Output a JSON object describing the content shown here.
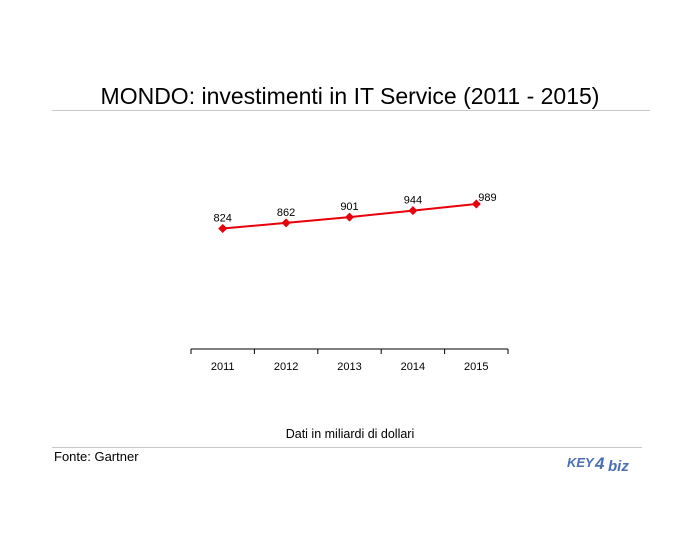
{
  "title": "MONDO: investimenti in IT Service (2011 - 2015)",
  "note": "Dati in miliardi di dollari",
  "source": "Fonte: Gartner",
  "logo": {
    "text_left": "KEY",
    "text_right": "biz",
    "glyph": "4",
    "color": "#4a6fb5"
  },
  "colors": {
    "series": "#e8000b",
    "axis": "#000000",
    "rule": "#c8c8c8"
  },
  "chart_data": {
    "type": "line",
    "categories": [
      "2011",
      "2012",
      "2013",
      "2014",
      "2015"
    ],
    "series": [
      {
        "values": [
          824,
          862,
          901,
          944,
          989
        ],
        "marker": "diamond",
        "color": "#e8000b",
        "data_labels": true
      }
    ],
    "title": "MONDO: investimenti in IT Service (2011 - 2015)",
    "xlabel": "",
    "ylabel": "",
    "y_axis_visible": false,
    "grid": false,
    "legend": "none"
  }
}
